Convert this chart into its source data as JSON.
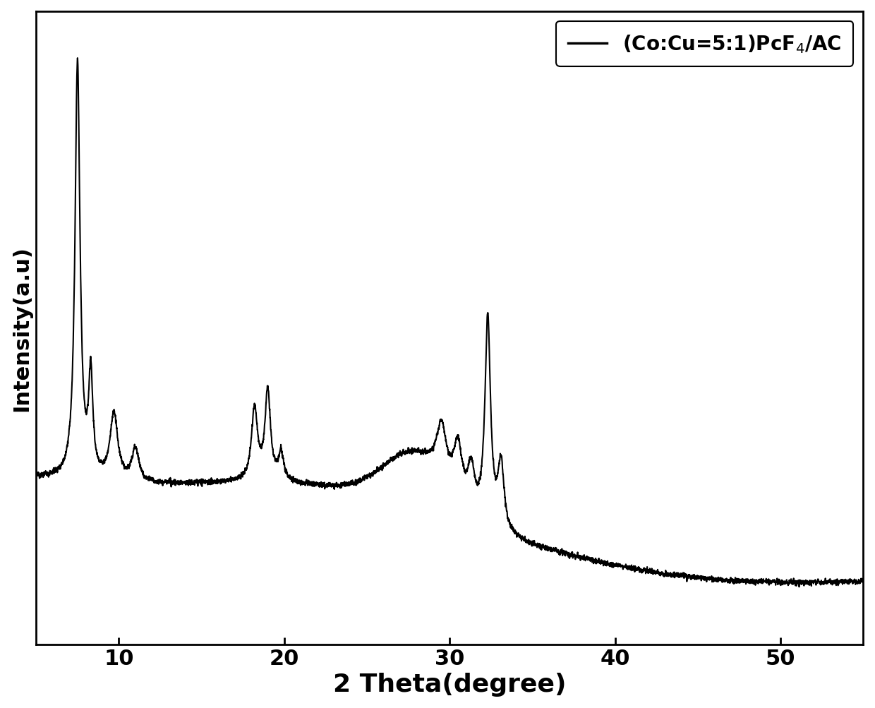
{
  "xlabel": "2 Theta(degree)",
  "ylabel": "Intensity(a.u)",
  "xlim": [
    5,
    55
  ],
  "legend_label": "(Co:Cu=5:1)PcF$_4$/AC",
  "line_color": "#000000",
  "line_width": 1.5,
  "background_color": "#ffffff",
  "xlabel_fontsize": 26,
  "ylabel_fontsize": 22,
  "tick_fontsize": 22,
  "legend_fontsize": 20,
  "xticks": [
    10,
    20,
    30,
    40,
    50
  ],
  "figsize": [
    12.4,
    10.04
  ],
  "dpi": 100
}
